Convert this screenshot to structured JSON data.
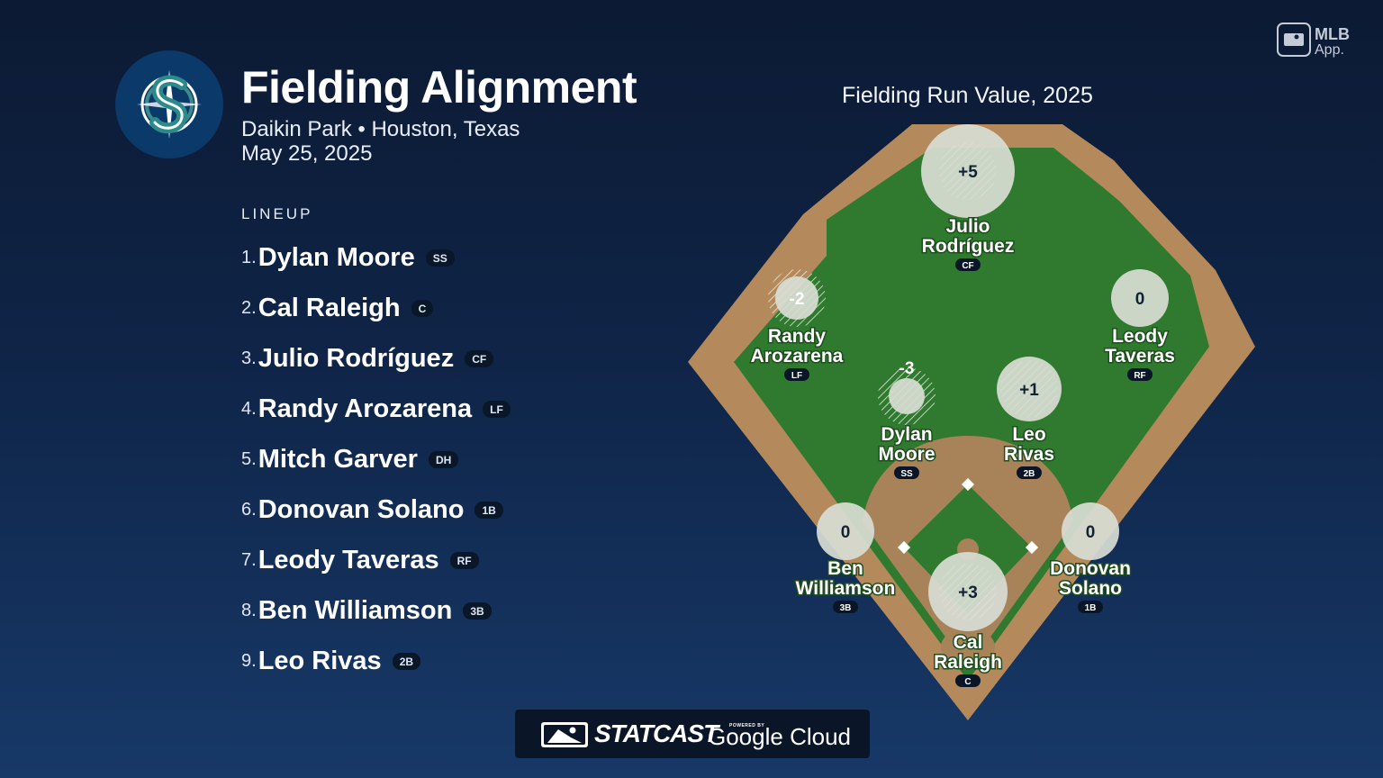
{
  "header": {
    "title": "Fielding Alignment",
    "venue": "Daikin Park • Houston, Texas",
    "date": "May 25, 2025",
    "team_logo_icon": "mariners-s-compass-logo-icon"
  },
  "brand": {
    "app_label_top": "MLB",
    "app_label_bottom": "App.",
    "statcast_label": "STATCAST",
    "powered_by": "POWERED BY",
    "google_cloud": "Google Cloud"
  },
  "lineup": {
    "heading": "LINEUP",
    "players": [
      {
        "num": "1.",
        "name": "Dylan Moore",
        "pos": "SS"
      },
      {
        "num": "2.",
        "name": "Cal Raleigh",
        "pos": "C"
      },
      {
        "num": "3.",
        "name": "Julio Rodríguez",
        "pos": "CF"
      },
      {
        "num": "4.",
        "name": "Randy Arozarena",
        "pos": "LF"
      },
      {
        "num": "5.",
        "name": "Mitch Garver",
        "pos": "DH"
      },
      {
        "num": "6.",
        "name": "Donovan Solano",
        "pos": "1B"
      },
      {
        "num": "7.",
        "name": "Leody Taveras",
        "pos": "RF"
      },
      {
        "num": "8.",
        "name": "Ben Williamson",
        "pos": "3B"
      },
      {
        "num": "9.",
        "name": "Leo Rivas",
        "pos": "2B"
      }
    ]
  },
  "field": {
    "title": "Fielding Run Value, 2025",
    "colors": {
      "grass": "#2f7a2e",
      "dirt": "#a8835a",
      "wall": "#b48a5c",
      "bubble": "#d9ddd5"
    },
    "fielders": [
      {
        "pos": "CF",
        "line1": "Julio",
        "line2": "Rodríguez",
        "frv": "+5",
        "value": 5
      },
      {
        "pos": "LF",
        "line1": "Randy",
        "line2": "Arozarena",
        "frv": "-2",
        "value": -2
      },
      {
        "pos": "RF",
        "line1": "Leody",
        "line2": "Taveras",
        "frv": "0",
        "value": 0
      },
      {
        "pos": "SS",
        "line1": "Dylan",
        "line2": "Moore",
        "frv": "-3",
        "value": -3
      },
      {
        "pos": "2B",
        "line1": "Leo",
        "line2": "Rivas",
        "frv": "+1",
        "value": 1
      },
      {
        "pos": "3B",
        "line1": "Ben",
        "line2": "Williamson",
        "frv": "0",
        "value": 0
      },
      {
        "pos": "1B",
        "line1": "Donovan",
        "line2": "Solano",
        "frv": "0",
        "value": 0
      },
      {
        "pos": "C",
        "line1": "Cal",
        "line2": "Raleigh",
        "frv": "+3",
        "value": 3
      }
    ]
  }
}
